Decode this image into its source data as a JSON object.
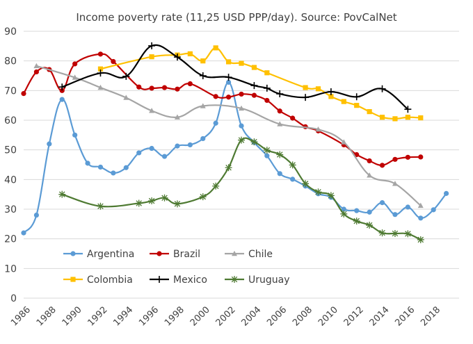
{
  "chart_data": {
    "type": "line",
    "title": "Income poverty rate (11,25 USD PPP/day). Source: PovCalNet",
    "xlabel": "",
    "ylabel": "",
    "xlim": [
      1986,
      2020
    ],
    "ylim": [
      0,
      90
    ],
    "yticks": [
      0,
      10,
      20,
      30,
      40,
      50,
      60,
      70,
      80,
      90
    ],
    "xticks": [
      1986,
      1988,
      1990,
      1992,
      1994,
      1996,
      1998,
      2000,
      2002,
      2004,
      2006,
      2008,
      2010,
      2012,
      2014,
      2016,
      2018
    ],
    "grid": "horizontal",
    "legend": "bottom-left",
    "series": [
      {
        "name": "Argentina",
        "color": "#5b9bd5",
        "marker": "circle",
        "points": [
          [
            1986,
            22
          ],
          [
            1987,
            28
          ],
          [
            1988,
            52
          ],
          [
            1989,
            67
          ],
          [
            1990,
            55
          ],
          [
            1991,
            45.5
          ],
          [
            1992,
            44.2
          ],
          [
            1993,
            42.2
          ],
          [
            1994,
            44
          ],
          [
            1995,
            49
          ],
          [
            1996,
            50.5
          ],
          [
            1997,
            47.8
          ],
          [
            1998,
            51.3
          ],
          [
            1999,
            51.7
          ],
          [
            2000,
            53.8
          ],
          [
            2001,
            59
          ],
          [
            2002,
            72.8
          ],
          [
            2003,
            58.1
          ],
          [
            2004,
            52.5
          ],
          [
            2005,
            48
          ],
          [
            2006,
            42
          ],
          [
            2007,
            40.1
          ],
          [
            2008,
            37.8
          ],
          [
            2009,
            35.2
          ],
          [
            2010,
            34
          ],
          [
            2011,
            30
          ],
          [
            2012,
            29.5
          ],
          [
            2013,
            29
          ],
          [
            2014,
            32.2
          ],
          [
            2015,
            28.2
          ],
          [
            2016,
            30.7
          ],
          [
            2017,
            27
          ],
          [
            2018,
            29.8
          ],
          [
            2019,
            35.3
          ]
        ]
      },
      {
        "name": "Brazil",
        "color": "#c00000",
        "marker": "circle",
        "points": [
          [
            1986,
            69
          ],
          [
            1987,
            76.3
          ],
          [
            1988,
            77.1
          ],
          [
            1989,
            70
          ],
          [
            1990,
            79
          ],
          [
            1992,
            82.3
          ],
          [
            1993,
            79.8
          ],
          [
            1995,
            71.2
          ],
          [
            1996,
            70.8
          ],
          [
            1997,
            71
          ],
          [
            1998,
            70.5
          ],
          [
            1999,
            72.3
          ],
          [
            2001,
            68
          ],
          [
            2002,
            67.8
          ],
          [
            2003,
            68.8
          ],
          [
            2004,
            68.4
          ],
          [
            2005,
            66.7
          ],
          [
            2006,
            63.1
          ],
          [
            2007,
            60.7
          ],
          [
            2008,
            57.8
          ],
          [
            2009,
            56.4
          ],
          [
            2011,
            51.7
          ],
          [
            2012,
            48.4
          ],
          [
            2013,
            46.3
          ],
          [
            2014,
            44.8
          ],
          [
            2015,
            46.8
          ],
          [
            2016,
            47.5
          ],
          [
            2017,
            47.6
          ]
        ]
      },
      {
        "name": "Chile",
        "color": "#a5a5a5",
        "marker": "triangle",
        "points": [
          [
            1987,
            78.3
          ],
          [
            1990,
            74.4
          ],
          [
            1992,
            71
          ],
          [
            1994,
            67.6
          ],
          [
            1996,
            63.2
          ],
          [
            1998,
            61
          ],
          [
            2000,
            64.8
          ],
          [
            2003,
            64
          ],
          [
            2006,
            58.7
          ],
          [
            2009,
            56.9
          ],
          [
            2011,
            52.6
          ],
          [
            2013,
            41.4
          ],
          [
            2015,
            38.6
          ],
          [
            2017,
            31.2
          ]
        ]
      },
      {
        "name": "Colombia",
        "color": "#ffc000",
        "marker": "square",
        "points": [
          [
            1992,
            77.3
          ],
          [
            1996,
            81.4
          ],
          [
            1998,
            82
          ],
          [
            1999,
            82.4
          ],
          [
            2000,
            80
          ],
          [
            2001,
            84.4
          ],
          [
            2002,
            79.7
          ],
          [
            2003,
            79.2
          ],
          [
            2004,
            77.8
          ],
          [
            2005,
            76
          ],
          [
            2008,
            71
          ],
          [
            2009,
            70.6
          ],
          [
            2010,
            68
          ],
          [
            2011,
            66.3
          ],
          [
            2012,
            65
          ],
          [
            2013,
            62.9
          ],
          [
            2014,
            61
          ],
          [
            2015,
            60.5
          ],
          [
            2016,
            61
          ],
          [
            2017,
            60.8
          ]
        ]
      },
      {
        "name": "Mexico",
        "color": "#000000",
        "marker": "plus",
        "points": [
          [
            1989,
            71.2
          ],
          [
            1992,
            75.9
          ],
          [
            1994,
            74.8
          ],
          [
            1996,
            85.1
          ],
          [
            1998,
            81.3
          ],
          [
            2000,
            75
          ],
          [
            2002,
            74.5
          ],
          [
            2004,
            71.7
          ],
          [
            2005,
            70.8
          ],
          [
            2006,
            68.9
          ],
          [
            2008,
            67.7
          ],
          [
            2010,
            69.6
          ],
          [
            2012,
            67.9
          ],
          [
            2014,
            70.6
          ],
          [
            2016,
            63.7
          ]
        ]
      },
      {
        "name": "Uruguay",
        "color": "#4e7a32",
        "marker": "star",
        "points": [
          [
            1989,
            35
          ],
          [
            1992,
            31
          ],
          [
            1995,
            32
          ],
          [
            1996,
            32.8
          ],
          [
            1997,
            33.8
          ],
          [
            1998,
            31.8
          ],
          [
            2000,
            34.2
          ],
          [
            2001,
            37.8
          ],
          [
            2002,
            44
          ],
          [
            2003,
            53.3
          ],
          [
            2004,
            52.7
          ],
          [
            2005,
            49.9
          ],
          [
            2006,
            48.4
          ],
          [
            2007,
            44.9
          ],
          [
            2008,
            38.6
          ],
          [
            2009,
            35.8
          ],
          [
            2010,
            34.6
          ],
          [
            2011,
            28.4
          ],
          [
            2012,
            26
          ],
          [
            2013,
            24.6
          ],
          [
            2014,
            22
          ],
          [
            2015,
            21.8
          ],
          [
            2016,
            21.7
          ],
          [
            2017,
            19.7
          ]
        ]
      }
    ]
  }
}
